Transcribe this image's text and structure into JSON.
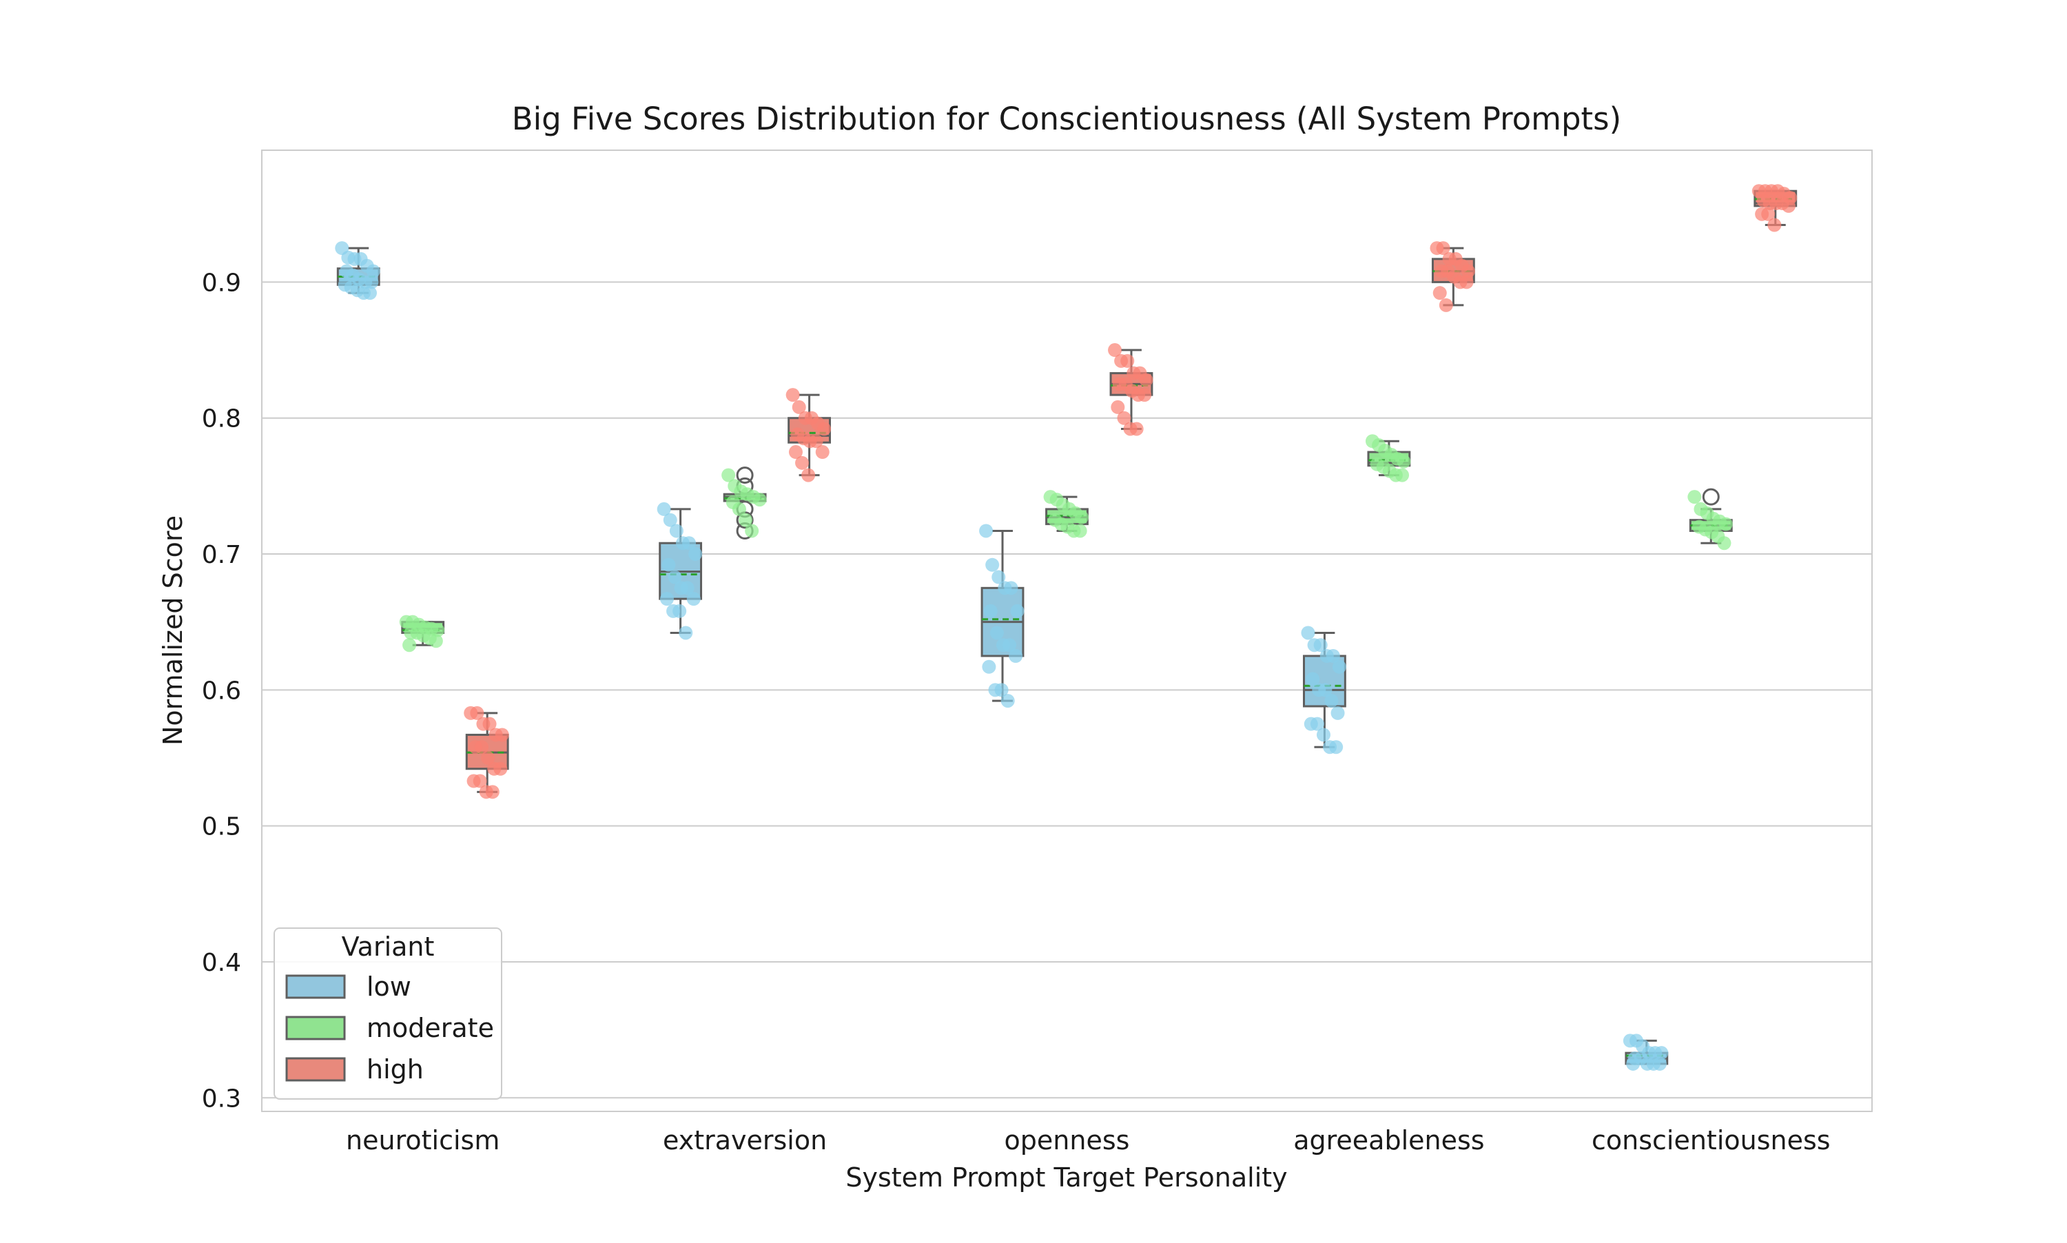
{
  "chart_data": {
    "type": "box",
    "title": "Big Five Scores Distribution for Conscientiousness (All System Prompts)",
    "xlabel": "System Prompt Target Personality",
    "ylabel": "Normalized Score",
    "ylim": [
      0.29,
      0.997
    ],
    "yticks": [
      0.3,
      0.4,
      0.5,
      0.6,
      0.7,
      0.8,
      0.9
    ],
    "ytick_labels": [
      "0.3",
      "0.4",
      "0.5",
      "0.6",
      "0.7",
      "0.8",
      "0.9"
    ],
    "grid": true,
    "categories": [
      "neuroticism",
      "extraversion",
      "openness",
      "agreeableness",
      "conscientiousness"
    ],
    "legend": {
      "title": "Variant",
      "position": "lower-left"
    },
    "series": [
      {
        "name": "low",
        "color": "#92c6de",
        "point_color": "#87ceeb",
        "boxes": [
          {
            "q1": 0.898,
            "median": 0.9,
            "q3": 0.91,
            "whisker_low": 0.892,
            "whisker_high": 0.925,
            "mean": 0.904,
            "outliers": [],
            "points": [
              0.925,
              0.918,
              0.917,
              0.917,
              0.912,
              0.908,
              0.908,
              0.905,
              0.902,
              0.9,
              0.9,
              0.898,
              0.896,
              0.894,
              0.892,
              0.892
            ]
          },
          {
            "q1": 0.667,
            "median": 0.687,
            "q3": 0.708,
            "whisker_low": 0.642,
            "whisker_high": 0.733,
            "mean": 0.685,
            "outliers": [],
            "points": [
              0.733,
              0.725,
              0.717,
              0.708,
              0.708,
              0.7,
              0.692,
              0.683,
              0.675,
              0.675,
              0.667,
              0.667,
              0.658,
              0.658,
              0.642
            ]
          },
          {
            "q1": 0.625,
            "median": 0.65,
            "q3": 0.675,
            "whisker_low": 0.592,
            "whisker_high": 0.717,
            "mean": 0.652,
            "outliers": [],
            "points": [
              0.717,
              0.692,
              0.683,
              0.675,
              0.675,
              0.658,
              0.658,
              0.642,
              0.633,
              0.633,
              0.625,
              0.617,
              0.6,
              0.6,
              0.592
            ]
          },
          {
            "q1": 0.588,
            "median": 0.6,
            "q3": 0.625,
            "whisker_low": 0.558,
            "whisker_high": 0.642,
            "mean": 0.603,
            "outliers": [],
            "points": [
              0.642,
              0.633,
              0.633,
              0.625,
              0.625,
              0.617,
              0.608,
              0.6,
              0.6,
              0.592,
              0.583,
              0.575,
              0.575,
              0.567,
              0.558,
              0.558
            ]
          },
          {
            "q1": 0.325,
            "median": 0.329,
            "q3": 0.333,
            "whisker_low": 0.325,
            "whisker_high": 0.342,
            "mean": 0.331,
            "outliers": [],
            "points": [
              0.342,
              0.342,
              0.338,
              0.333,
              0.333,
              0.333,
              0.329,
              0.329,
              0.325,
              0.325,
              0.325,
              0.325
            ]
          }
        ]
      },
      {
        "name": "moderate",
        "color": "#90e390",
        "point_color": "#90ee90",
        "boxes": [
          {
            "q1": 0.642,
            "median": 0.645,
            "q3": 0.65,
            "whisker_low": 0.633,
            "whisker_high": 0.65,
            "mean": 0.644,
            "outliers": [],
            "points": [
              0.65,
              0.65,
              0.648,
              0.646,
              0.645,
              0.644,
              0.642,
              0.642,
              0.64,
              0.638,
              0.636,
              0.633
            ]
          },
          {
            "q1": 0.739,
            "median": 0.742,
            "q3": 0.744,
            "whisker_low": 0.739,
            "whisker_high": 0.744,
            "mean": 0.741,
            "outliers": [
              0.758,
              0.75,
              0.733,
              0.725,
              0.717
            ],
            "points": [
              0.758,
              0.75,
              0.746,
              0.744,
              0.742,
              0.74,
              0.738,
              0.733,
              0.725,
              0.717
            ]
          },
          {
            "q1": 0.722,
            "median": 0.727,
            "q3": 0.733,
            "whisker_low": 0.717,
            "whisker_high": 0.742,
            "mean": 0.728,
            "outliers": [],
            "points": [
              0.742,
              0.74,
              0.736,
              0.733,
              0.73,
              0.727,
              0.725,
              0.722,
              0.72,
              0.717,
              0.717
            ]
          },
          {
            "q1": 0.765,
            "median": 0.767,
            "q3": 0.775,
            "whisker_low": 0.758,
            "whisker_high": 0.783,
            "mean": 0.769,
            "outliers": [],
            "points": [
              0.783,
              0.78,
              0.776,
              0.773,
              0.77,
              0.768,
              0.766,
              0.764,
              0.761,
              0.758,
              0.758
            ]
          },
          {
            "q1": 0.717,
            "median": 0.721,
            "q3": 0.725,
            "whisker_low": 0.708,
            "whisker_high": 0.733,
            "mean": 0.721,
            "outliers": [
              0.742
            ],
            "points": [
              0.742,
              0.733,
              0.73,
              0.726,
              0.724,
              0.722,
              0.72,
              0.718,
              0.716,
              0.713,
              0.708
            ]
          }
        ]
      },
      {
        "name": "high",
        "color": "#e8897c",
        "point_color": "#fa8072",
        "boxes": [
          {
            "q1": 0.542,
            "median": 0.554,
            "q3": 0.567,
            "whisker_low": 0.525,
            "whisker_high": 0.583,
            "mean": 0.554,
            "outliers": [],
            "points": [
              0.583,
              0.583,
              0.575,
              0.575,
              0.567,
              0.567,
              0.558,
              0.558,
              0.55,
              0.542,
              0.542,
              0.533,
              0.533,
              0.525,
              0.525
            ]
          },
          {
            "q1": 0.782,
            "median": 0.787,
            "q3": 0.8,
            "whisker_low": 0.758,
            "whisker_high": 0.817,
            "mean": 0.789,
            "outliers": [],
            "points": [
              0.817,
              0.808,
              0.8,
              0.8,
              0.796,
              0.792,
              0.788,
              0.785,
              0.783,
              0.783,
              0.775,
              0.775,
              0.767,
              0.758
            ]
          },
          {
            "q1": 0.817,
            "median": 0.825,
            "q3": 0.833,
            "whisker_low": 0.792,
            "whisker_high": 0.85,
            "mean": 0.824,
            "outliers": [],
            "points": [
              0.85,
              0.842,
              0.842,
              0.833,
              0.833,
              0.828,
              0.825,
              0.825,
              0.82,
              0.817,
              0.817,
              0.808,
              0.8,
              0.792,
              0.792
            ]
          },
          {
            "q1": 0.9,
            "median": 0.908,
            "q3": 0.917,
            "whisker_low": 0.883,
            "whisker_high": 0.925,
            "mean": 0.908,
            "outliers": [],
            "points": [
              0.925,
              0.925,
              0.917,
              0.917,
              0.912,
              0.908,
              0.908,
              0.908,
              0.904,
              0.9,
              0.9,
              0.892,
              0.883
            ]
          },
          {
            "q1": 0.956,
            "median": 0.958,
            "q3": 0.967,
            "whisker_low": 0.942,
            "whisker_high": 0.967,
            "mean": 0.961,
            "outliers": [],
            "points": [
              0.967,
              0.967,
              0.967,
              0.967,
              0.965,
              0.962,
              0.96,
              0.958,
              0.958,
              0.958,
              0.956,
              0.95,
              0.95,
              0.942
            ]
          }
        ]
      }
    ]
  }
}
